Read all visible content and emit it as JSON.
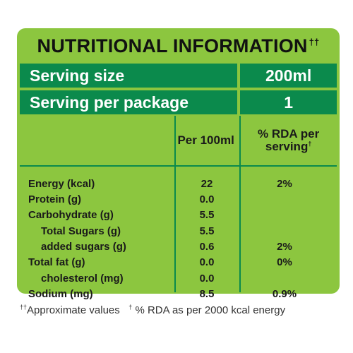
{
  "panel": {
    "title": "NUTRITIONAL INFORMATION",
    "title_mark": "††"
  },
  "serving": {
    "size_label": "Serving size",
    "size_value": "200ml",
    "per_package_label": "Serving per package",
    "per_package_value": "1"
  },
  "columns": {
    "per100": "Per 100ml",
    "rda_line1": "% RDA per",
    "rda_line2": "serving",
    "rda_mark": "†"
  },
  "rows": [
    {
      "name": "Energy (kcal)",
      "per100": "22",
      "rda": "2%"
    },
    {
      "name": "Protein (g)",
      "per100": "0.0",
      "rda": ""
    },
    {
      "name": "Carbohydrate (g)",
      "per100": "5.5",
      "rda": ""
    },
    {
      "name": "Total Sugars (g)",
      "per100": "5.5",
      "rda": ""
    },
    {
      "name": "added sugars (g)",
      "per100": "0.6",
      "rda": "2%"
    },
    {
      "name": "Total fat (g)",
      "per100": "0.0",
      "rda": "0%"
    },
    {
      "name": "cholesterol (mg)",
      "per100": "0.0",
      "rda": ""
    },
    {
      "name": "Sodium (mg)",
      "per100": "8.5",
      "rda": "0.9%"
    }
  ],
  "footnote": {
    "mark1": "††",
    "text1": "Approximate values",
    "mark2": "†",
    "text2": " % RDA as per 2000 kcal energy"
  },
  "colors": {
    "panel_green": "#8cc63f",
    "dark_green": "#0b8a4c"
  }
}
